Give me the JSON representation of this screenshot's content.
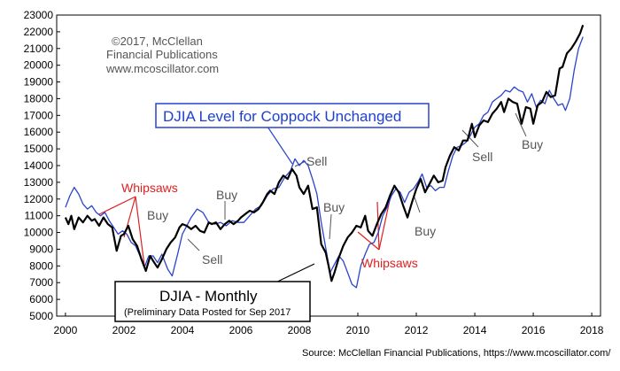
{
  "chart_data": {
    "type": "line",
    "title": "",
    "xlabel": "",
    "ylabel": "",
    "xlim": [
      1999.7,
      2018.3
    ],
    "ylim": [
      5000,
      23000
    ],
    "x_ticks": [
      "2000",
      "2002",
      "2004",
      "2006",
      "2008",
      "2010",
      "2012",
      "2014",
      "2016",
      "2018"
    ],
    "y_ticks": [
      "5000",
      "6000",
      "7000",
      "8000",
      "9000",
      "10000",
      "11000",
      "12000",
      "13000",
      "14000",
      "15000",
      "16000",
      "17000",
      "18000",
      "19000",
      "20000",
      "21000",
      "22000",
      "23000"
    ],
    "grid": false,
    "series": [
      {
        "name": "DJIA - Monthly",
        "color": "#000000",
        "points": [
          [
            2000.0,
            10900
          ],
          [
            2000.1,
            10500
          ],
          [
            2000.2,
            11000
          ],
          [
            2000.3,
            10200
          ],
          [
            2000.45,
            10900
          ],
          [
            2000.6,
            10600
          ],
          [
            2000.75,
            11000
          ],
          [
            2000.9,
            10700
          ],
          [
            2001.0,
            10800
          ],
          [
            2001.15,
            10400
          ],
          [
            2001.3,
            10900
          ],
          [
            2001.45,
            10500
          ],
          [
            2001.6,
            10300
          ],
          [
            2001.75,
            8900
          ],
          [
            2001.9,
            9800
          ],
          [
            2002.0,
            9900
          ],
          [
            2002.15,
            10400
          ],
          [
            2002.3,
            9600
          ],
          [
            2002.45,
            9200
          ],
          [
            2002.6,
            8400
          ],
          [
            2002.75,
            7700
          ],
          [
            2002.9,
            8600
          ],
          [
            2003.0,
            8300
          ],
          [
            2003.15,
            7900
          ],
          [
            2003.3,
            8400
          ],
          [
            2003.45,
            9000
          ],
          [
            2003.6,
            9400
          ],
          [
            2003.75,
            9700
          ],
          [
            2003.9,
            10300
          ],
          [
            2004.0,
            10500
          ],
          [
            2004.15,
            10400
          ],
          [
            2004.3,
            10200
          ],
          [
            2004.45,
            10400
          ],
          [
            2004.6,
            10100
          ],
          [
            2004.75,
            10000
          ],
          [
            2004.9,
            10600
          ],
          [
            2005.0,
            10500
          ],
          [
            2005.15,
            10600
          ],
          [
            2005.3,
            10200
          ],
          [
            2005.45,
            10500
          ],
          [
            2005.6,
            10700
          ],
          [
            2005.75,
            10500
          ],
          [
            2005.9,
            10700
          ],
          [
            2006.0,
            10900
          ],
          [
            2006.15,
            11100
          ],
          [
            2006.3,
            11300
          ],
          [
            2006.45,
            11200
          ],
          [
            2006.6,
            11400
          ],
          [
            2006.75,
            11800
          ],
          [
            2006.9,
            12300
          ],
          [
            2007.0,
            12500
          ],
          [
            2007.15,
            12300
          ],
          [
            2007.3,
            13000
          ],
          [
            2007.45,
            13400
          ],
          [
            2007.6,
            13200
          ],
          [
            2007.75,
            13800
          ],
          [
            2007.9,
            13400
          ],
          [
            2008.0,
            12700
          ],
          [
            2008.15,
            12300
          ],
          [
            2008.3,
            12800
          ],
          [
            2008.45,
            11400
          ],
          [
            2008.6,
            11500
          ],
          [
            2008.75,
            9300
          ],
          [
            2008.9,
            8800
          ],
          [
            2009.0,
            8000
          ],
          [
            2009.1,
            7100
          ],
          [
            2009.2,
            7600
          ],
          [
            2009.35,
            8500
          ],
          [
            2009.5,
            9200
          ],
          [
            2009.65,
            9700
          ],
          [
            2009.8,
            10000
          ],
          [
            2009.95,
            10400
          ],
          [
            2010.1,
            10300
          ],
          [
            2010.25,
            11000
          ],
          [
            2010.35,
            10100
          ],
          [
            2010.5,
            9800
          ],
          [
            2010.65,
            10500
          ],
          [
            2010.8,
            11100
          ],
          [
            2010.95,
            11500
          ],
          [
            2011.1,
            12200
          ],
          [
            2011.25,
            12800
          ],
          [
            2011.4,
            12400
          ],
          [
            2011.55,
            11600
          ],
          [
            2011.7,
            10900
          ],
          [
            2011.85,
            11800
          ],
          [
            2012.0,
            12600
          ],
          [
            2012.15,
            13200
          ],
          [
            2012.3,
            12400
          ],
          [
            2012.45,
            12900
          ],
          [
            2012.6,
            13400
          ],
          [
            2012.75,
            13000
          ],
          [
            2012.9,
            13100
          ],
          [
            2013.0,
            13900
          ],
          [
            2013.15,
            14600
          ],
          [
            2013.3,
            15100
          ],
          [
            2013.45,
            14900
          ],
          [
            2013.6,
            15500
          ],
          [
            2013.75,
            15500
          ],
          [
            2013.9,
            16500
          ],
          [
            2014.0,
            15700
          ],
          [
            2014.15,
            16400
          ],
          [
            2014.3,
            16700
          ],
          [
            2014.45,
            16600
          ],
          [
            2014.6,
            17100
          ],
          [
            2014.75,
            17400
          ],
          [
            2014.9,
            17800
          ],
          [
            2015.0,
            17200
          ],
          [
            2015.15,
            18000
          ],
          [
            2015.3,
            17800
          ],
          [
            2015.45,
            17700
          ],
          [
            2015.6,
            16500
          ],
          [
            2015.75,
            17500
          ],
          [
            2015.9,
            17400
          ],
          [
            2016.0,
            16500
          ],
          [
            2016.15,
            17600
          ],
          [
            2016.3,
            17800
          ],
          [
            2016.45,
            18400
          ],
          [
            2016.6,
            18100
          ],
          [
            2016.75,
            18200
          ],
          [
            2016.9,
            19800
          ],
          [
            2017.0,
            19900
          ],
          [
            2017.15,
            20700
          ],
          [
            2017.3,
            21000
          ],
          [
            2017.45,
            21400
          ],
          [
            2017.6,
            21900
          ],
          [
            2017.7,
            22400
          ]
        ]
      },
      {
        "name": "DJIA Level for Coppock Unchanged",
        "color": "#2a44cc",
        "points": [
          [
            2000.0,
            11500
          ],
          [
            2000.15,
            12200
          ],
          [
            2000.3,
            12700
          ],
          [
            2000.45,
            12300
          ],
          [
            2000.6,
            11700
          ],
          [
            2000.75,
            11400
          ],
          [
            2000.9,
            11600
          ],
          [
            2001.05,
            11200
          ],
          [
            2001.2,
            11000
          ],
          [
            2001.35,
            11200
          ],
          [
            2001.5,
            10700
          ],
          [
            2001.65,
            10300
          ],
          [
            2001.8,
            9900
          ],
          [
            2001.95,
            10100
          ],
          [
            2002.1,
            9900
          ],
          [
            2002.25,
            9400
          ],
          [
            2002.4,
            9200
          ],
          [
            2002.55,
            8600
          ],
          [
            2002.7,
            7900
          ],
          [
            2002.85,
            8600
          ],
          [
            2003.0,
            8600
          ],
          [
            2003.15,
            8200
          ],
          [
            2003.3,
            8700
          ],
          [
            2003.5,
            7800
          ],
          [
            2003.65,
            7400
          ],
          [
            2003.85,
            8800
          ],
          [
            2004.0,
            9900
          ],
          [
            2004.15,
            10400
          ],
          [
            2004.3,
            10900
          ],
          [
            2004.5,
            11400
          ],
          [
            2004.7,
            11200
          ],
          [
            2004.9,
            10600
          ],
          [
            2005.1,
            10500
          ],
          [
            2005.3,
            10600
          ],
          [
            2005.5,
            10400
          ],
          [
            2005.7,
            10700
          ],
          [
            2005.9,
            10600
          ],
          [
            2006.1,
            10600
          ],
          [
            2006.3,
            11000
          ],
          [
            2006.5,
            11400
          ],
          [
            2006.7,
            11600
          ],
          [
            2006.9,
            12200
          ],
          [
            2007.1,
            12600
          ],
          [
            2007.3,
            12700
          ],
          [
            2007.5,
            13300
          ],
          [
            2007.7,
            13700
          ],
          [
            2007.85,
            14400
          ],
          [
            2008.0,
            14000
          ],
          [
            2008.15,
            14300
          ],
          [
            2008.3,
            14000
          ],
          [
            2008.45,
            13200
          ],
          [
            2008.6,
            12300
          ],
          [
            2008.75,
            10600
          ],
          [
            2008.9,
            9100
          ],
          [
            2009.05,
            7600
          ],
          [
            2009.2,
            8100
          ],
          [
            2009.35,
            8600
          ],
          [
            2009.5,
            8300
          ],
          [
            2009.65,
            7600
          ],
          [
            2009.8,
            6900
          ],
          [
            2009.95,
            6700
          ],
          [
            2010.1,
            8000
          ],
          [
            2010.25,
            8700
          ],
          [
            2010.4,
            9300
          ],
          [
            2010.55,
            9400
          ],
          [
            2010.7,
            10000
          ],
          [
            2010.85,
            11000
          ],
          [
            2011.0,
            11500
          ],
          [
            2011.15,
            12200
          ],
          [
            2011.3,
            12600
          ],
          [
            2011.45,
            12400
          ],
          [
            2011.6,
            11800
          ],
          [
            2011.75,
            12400
          ],
          [
            2011.9,
            12600
          ],
          [
            2012.05,
            13000
          ],
          [
            2012.2,
            13500
          ],
          [
            2012.35,
            12700
          ],
          [
            2012.5,
            12800
          ],
          [
            2012.65,
            12500
          ],
          [
            2012.8,
            12700
          ],
          [
            2012.95,
            12700
          ],
          [
            2013.1,
            13700
          ],
          [
            2013.25,
            14600
          ],
          [
            2013.4,
            15100
          ],
          [
            2013.55,
            15200
          ],
          [
            2013.7,
            15400
          ],
          [
            2013.85,
            15800
          ],
          [
            2014.0,
            16300
          ],
          [
            2014.15,
            16500
          ],
          [
            2014.3,
            17000
          ],
          [
            2014.45,
            17200
          ],
          [
            2014.6,
            17800
          ],
          [
            2014.75,
            18000
          ],
          [
            2014.9,
            18200
          ],
          [
            2015.05,
            18500
          ],
          [
            2015.2,
            18400
          ],
          [
            2015.35,
            18700
          ],
          [
            2015.5,
            18500
          ],
          [
            2015.65,
            18400
          ],
          [
            2015.8,
            17800
          ],
          [
            2015.95,
            18300
          ],
          [
            2016.1,
            17500
          ],
          [
            2016.25,
            17900
          ],
          [
            2016.4,
            17700
          ],
          [
            2016.55,
            18500
          ],
          [
            2016.7,
            18000
          ],
          [
            2016.85,
            17600
          ],
          [
            2017.0,
            17700
          ],
          [
            2017.1,
            17300
          ],
          [
            2017.25,
            18000
          ],
          [
            2017.4,
            19700
          ],
          [
            2017.55,
            21000
          ],
          [
            2017.7,
            21700
          ]
        ]
      }
    ]
  },
  "annotations": {
    "credit_lines": [
      "©2017, McClellan",
      "Financial Publications",
      "www.mcoscillator.com"
    ],
    "blue_title": "DJIA Level for Coppock Unchanged",
    "black_title": "DJIA - Monthly",
    "black_subtitle": "(Preliminary Data Posted for Sep 2017",
    "whipsaws_1": "Whipsaws",
    "whipsaws_2": "Whipsaws",
    "buy_1": "Buy",
    "buy_2": "Buy",
    "buy_3": "Buy",
    "buy_4": "Buy",
    "buy_5": "Buy",
    "sell_1": "Sell",
    "sell_2": "Sell",
    "sell_3": "Sell",
    "source": "Source: McClellan Financial Publications, https://www.mcoscillator.com/"
  },
  "colors": {
    "djia": "#000000",
    "coppock": "#2a44cc",
    "whipsaw": "#e02020",
    "annotation_grey": "#555555"
  }
}
